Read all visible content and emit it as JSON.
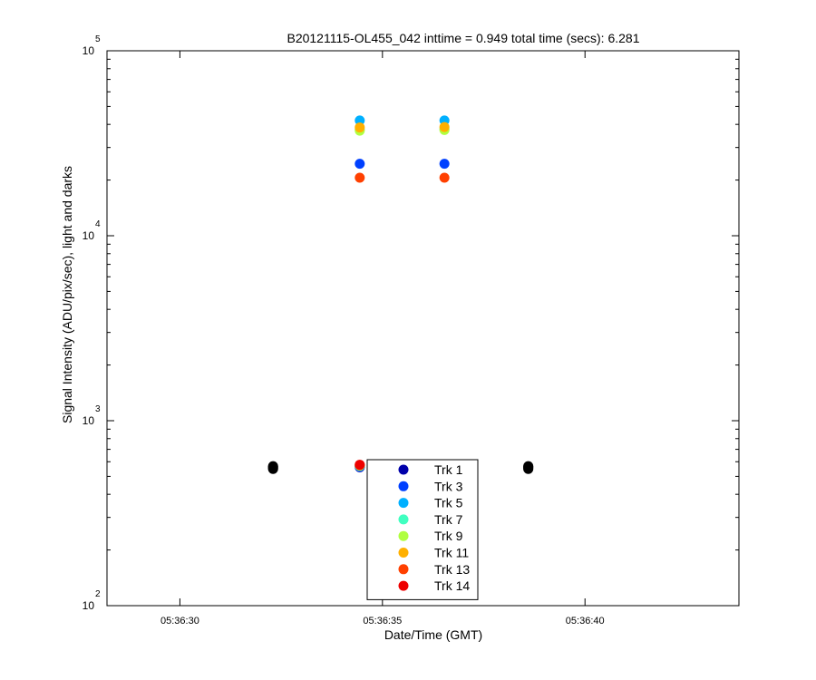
{
  "chart_data": {
    "type": "scatter",
    "title": "B20121115-OL455_042 inttime = 0.949 total time (secs): 6.281",
    "xlabel": "Date/Time (GMT)",
    "ylabel": "Signal Intensity (ADU/pix/sec), light and darks",
    "y_scale": "log",
    "ylim": [
      100,
      100000
    ],
    "x_unit": "seconds after 05:36:00 GMT",
    "xlim": [
      28.2,
      43.8
    ],
    "x_ticks": [
      {
        "value": 30,
        "label": "05:36:30"
      },
      {
        "value": 35,
        "label": "05:36:35"
      },
      {
        "value": 40,
        "label": "05:36:40"
      }
    ],
    "y_ticks": [
      {
        "value": 100,
        "base": "10",
        "exp": "2"
      },
      {
        "value": 1000,
        "base": "10",
        "exp": "3"
      },
      {
        "value": 10000,
        "base": "10",
        "exp": "4"
      },
      {
        "value": 100000,
        "base": "10",
        "exp": "5"
      }
    ],
    "legend_position": "bottom-center",
    "series": [
      {
        "name": "Trk 1",
        "color": "#0000aa",
        "points": [
          [
            34.44,
            560
          ],
          [
            36.53,
            565
          ]
        ]
      },
      {
        "name": "Trk 3",
        "color": "#0040ff",
        "points": [
          [
            34.44,
            24500
          ],
          [
            36.53,
            24500
          ],
          [
            34.44,
            565
          ],
          [
            36.53,
            568
          ]
        ]
      },
      {
        "name": "Trk 5",
        "color": "#00b0ff",
        "points": [
          [
            34.44,
            42000
          ],
          [
            36.53,
            42000
          ],
          [
            34.44,
            568
          ],
          [
            36.53,
            570
          ]
        ]
      },
      {
        "name": "Trk 7",
        "color": "#40ffc0",
        "points": [
          [
            34.44,
            37500
          ],
          [
            36.53,
            37800
          ],
          [
            34.44,
            570
          ],
          [
            36.53,
            572
          ]
        ]
      },
      {
        "name": "Trk 9",
        "color": "#b0ff40",
        "points": [
          [
            34.44,
            37000
          ],
          [
            36.53,
            37300
          ],
          [
            34.44,
            572
          ],
          [
            36.53,
            574
          ]
        ]
      },
      {
        "name": "Trk 11",
        "color": "#ffb000",
        "points": [
          [
            34.44,
            38500
          ],
          [
            36.53,
            38700
          ],
          [
            34.44,
            574
          ],
          [
            36.53,
            576
          ]
        ]
      },
      {
        "name": "Trk 13",
        "color": "#ff4000",
        "points": [
          [
            34.44,
            20600
          ],
          [
            36.53,
            20600
          ],
          [
            34.44,
            576
          ],
          [
            36.53,
            578
          ]
        ]
      },
      {
        "name": "Trk 14",
        "color": "#ee0000",
        "points": [
          [
            34.44,
            578
          ],
          [
            36.53,
            580
          ]
        ]
      }
    ],
    "darks": {
      "color": "#000000",
      "points": [
        [
          32.3,
          548
        ],
        [
          32.3,
          553
        ],
        [
          32.3,
          558
        ],
        [
          32.3,
          563
        ],
        [
          32.3,
          568
        ],
        [
          38.6,
          548
        ],
        [
          38.6,
          553
        ],
        [
          38.6,
          558
        ],
        [
          38.6,
          563
        ],
        [
          38.6,
          568
        ]
      ]
    }
  }
}
